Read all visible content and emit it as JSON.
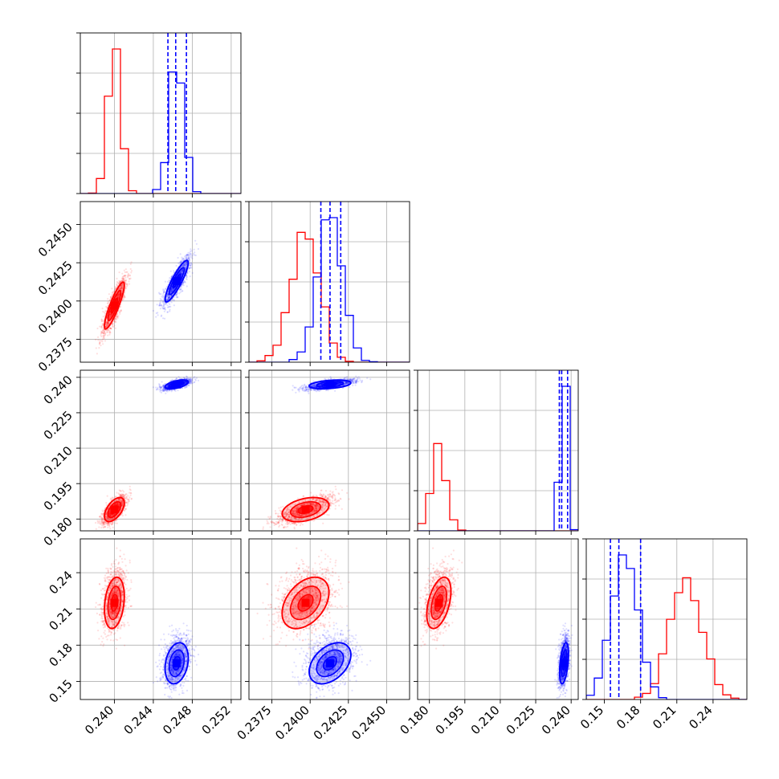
{
  "chart_data": {
    "type": "corner",
    "n_parameters": 4,
    "grid": true,
    "series": [
      {
        "name": "",
        "color": "#ff0000",
        "mean": [
          0.24,
          0.2397,
          0.184,
          0.215
        ],
        "std": [
          0.0006,
          0.0009,
          0.003,
          0.0125
        ]
      },
      {
        "name": "",
        "color": "#0000ff",
        "mean": [
          0.2464,
          0.2413,
          0.237,
          0.165
        ],
        "std": [
          0.0007,
          0.0008,
          0.0011,
          0.01
        ]
      }
    ],
    "quantile_lines": {
      "color": "#0000ff",
      "values": [
        [
          0.2455,
          0.2463,
          0.2474
        ],
        [
          0.2407,
          0.2413,
          0.242
        ],
        [
          0.235,
          0.236,
          0.2385
        ],
        [
          0.155,
          0.162,
          0.18
        ]
      ]
    },
    "axes": [
      {
        "xlim": [
          0.2365,
          0.253
        ],
        "ticks": [
          "0.240",
          "0.244",
          "0.248",
          "0.252"
        ],
        "tick_values": [
          0.24,
          0.244,
          0.248,
          0.252
        ]
      },
      {
        "xlim": [
          0.236,
          0.2465
        ],
        "ticks": [
          "0.2375",
          "0.2400",
          "0.2425",
          "0.2450"
        ],
        "tick_values": [
          0.2375,
          0.24,
          0.2425,
          0.245
        ]
      },
      {
        "xlim": [
          0.175,
          0.243
        ],
        "ticks": [
          "0.180",
          "0.195",
          "0.210",
          "0.225",
          "0.240"
        ],
        "tick_values": [
          0.18,
          0.195,
          0.21,
          0.225,
          0.24
        ]
      },
      {
        "xlim": [
          0.135,
          0.268
        ],
        "ticks": [
          "0.15",
          "0.18",
          "0.21",
          "0.24"
        ],
        "tick_values": [
          0.15,
          0.18,
          0.21,
          0.24
        ]
      }
    ]
  }
}
